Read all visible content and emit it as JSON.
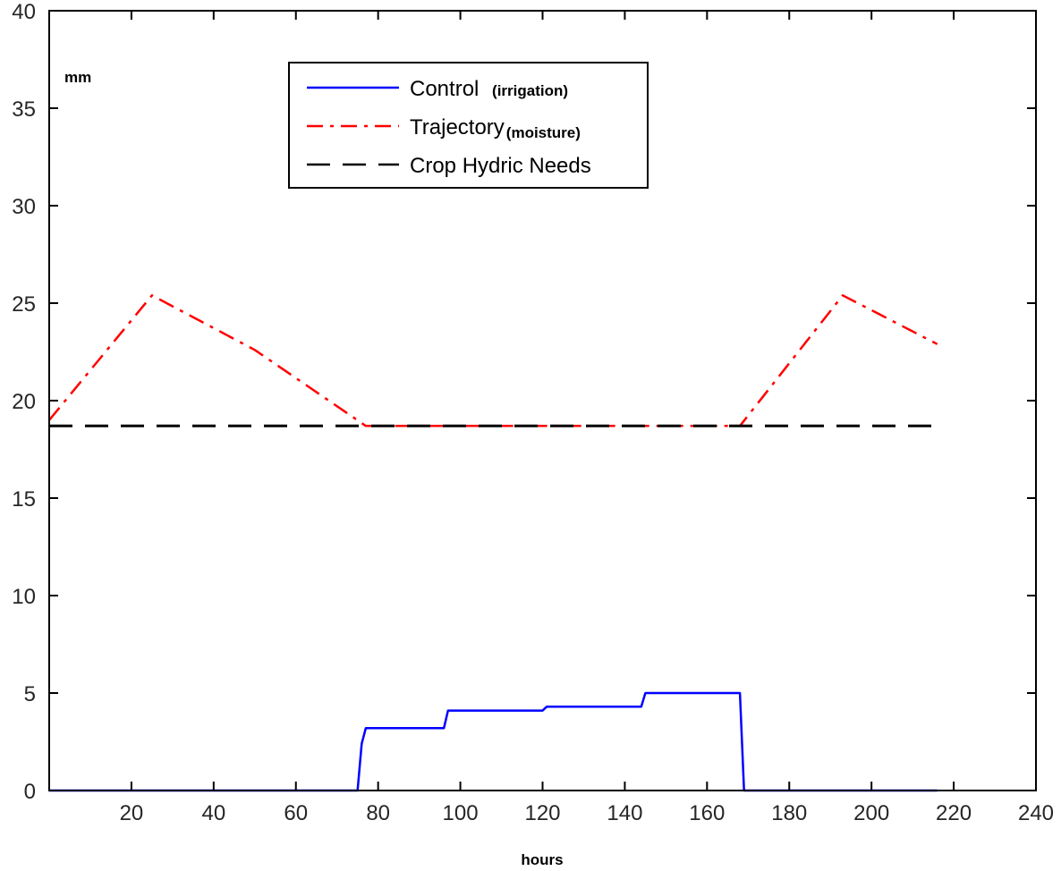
{
  "chart_data": {
    "type": "line",
    "title": "",
    "xlabel": "hours",
    "ylabel": "mm",
    "xlim": [
      0,
      240
    ],
    "ylim": [
      0,
      40
    ],
    "xticks": [
      20,
      40,
      60,
      80,
      100,
      120,
      140,
      160,
      180,
      200,
      220,
      240
    ],
    "yticks": [
      0,
      5,
      10,
      15,
      20,
      25,
      30,
      35,
      40
    ],
    "grid": false,
    "legend_position": "top-center",
    "series": [
      {
        "name": "Control",
        "note": "(irrigation)",
        "color": "#0000ff",
        "style": "solid",
        "points": [
          [
            0,
            0
          ],
          [
            75,
            0
          ],
          [
            76,
            2.4
          ],
          [
            77,
            3.2
          ],
          [
            96,
            3.2
          ],
          [
            97,
            4.1
          ],
          [
            120,
            4.1
          ],
          [
            121,
            4.3
          ],
          [
            144,
            4.3
          ],
          [
            145,
            5.0
          ],
          [
            168,
            5.0
          ],
          [
            169,
            0
          ],
          [
            216,
            0
          ]
        ]
      },
      {
        "name": "Trajectory",
        "note": "(moisture)",
        "color": "#ff0000",
        "style": "dashdot",
        "points": [
          [
            0,
            19.0
          ],
          [
            25,
            25.4
          ],
          [
            50,
            22.6
          ],
          [
            77,
            18.7
          ],
          [
            168,
            18.7
          ],
          [
            193,
            25.4
          ],
          [
            216,
            22.9
          ]
        ]
      },
      {
        "name": "Crop Hydric Needs",
        "note": "",
        "color": "#000000",
        "style": "dashed",
        "points": [
          [
            0,
            18.7
          ],
          [
            216,
            18.7
          ]
        ]
      }
    ]
  }
}
